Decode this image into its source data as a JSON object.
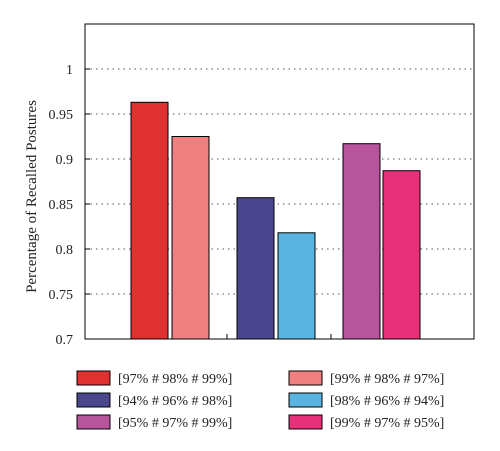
{
  "chart_data": {
    "type": "bar",
    "title": "",
    "xlabel": "",
    "ylabel": "Percentage of Recalled Postures",
    "ylim": [
      0.7,
      1.05
    ],
    "yticks": [
      0.7,
      0.75,
      0.8,
      0.85,
      0.9,
      0.95,
      1
    ],
    "ytick_labels": [
      "0.7",
      "0.75",
      "0.8",
      "0.85",
      "0.9",
      "0.95",
      "1"
    ],
    "grid": "horizontal-dotted",
    "legend_position": "bottom",
    "series": [
      {
        "name": "[97% # 98% # 99%]",
        "value": 0.963,
        "color": "#e03030"
      },
      {
        "name": "[99% # 98% # 97%]",
        "value": 0.925,
        "color": "#f08080"
      },
      {
        "name": "[94% # 96% # 98%]",
        "value": 0.857,
        "color": "#4a468e"
      },
      {
        "name": "[98% # 96% # 94%]",
        "value": 0.818,
        "color": "#5ab4e0"
      },
      {
        "name": "[95% # 97% # 99%]",
        "value": 0.917,
        "color": "#b8549c"
      },
      {
        "name": "[99% # 97% # 95%]",
        "value": 0.887,
        "color": "#e8307a"
      }
    ]
  }
}
